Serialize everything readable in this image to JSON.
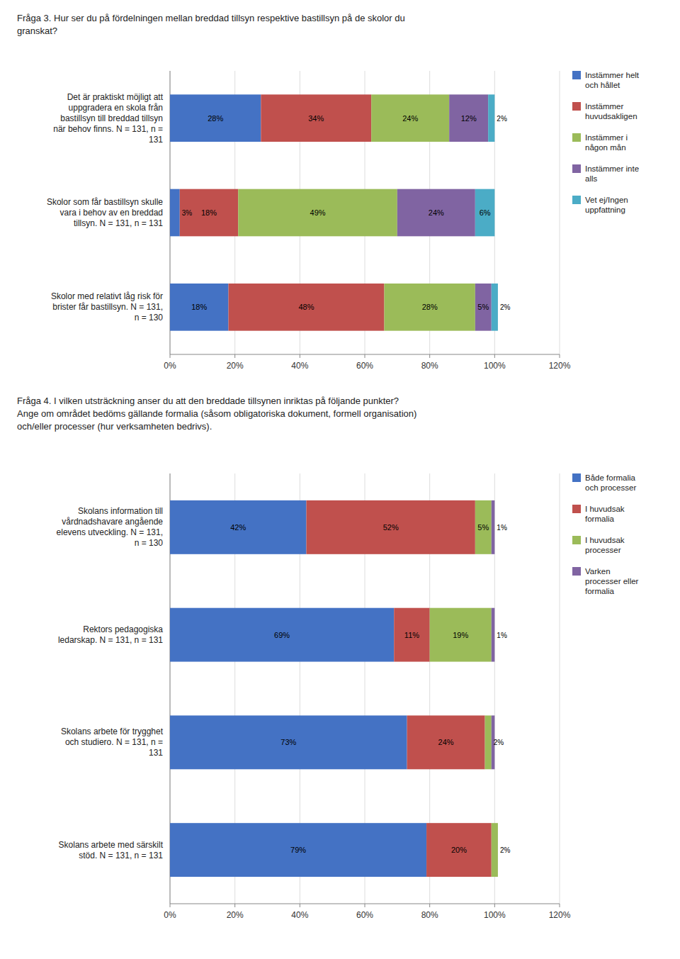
{
  "chart_data": [
    {
      "type": "bar",
      "orientation": "horizontal",
      "stacked": true,
      "data_labels": true,
      "grid": true,
      "legend": "right",
      "title": "Fråga 3. Hur ser du på fördelningen mellan breddad tillsyn respektive bastillsyn på de skolor du\ngranskat?",
      "categories": [
        "Det är praktiskt möjligt att\nuppgradera en skola från\nbastillsyn till breddad tillsyn\nnär behov finns. N = 131, n =\n131",
        "Skolor som får bastillsyn skulle\nvara i behov av en breddad\ntillsyn. N = 131, n = 131",
        "Skolor med relativt låg risk för\nbrister får bastillsyn. N = 131,\nn = 130"
      ],
      "series": [
        {
          "name": "Instämmer helt\noch hållet",
          "color": "#4472C4",
          "values": [
            28,
            3,
            18
          ],
          "value_labels": [
            "28%",
            "3%",
            "18%"
          ]
        },
        {
          "name": "Instämmer\nhuvudsakligen",
          "color": "#C0504D",
          "values": [
            34,
            18,
            48
          ],
          "value_labels": [
            "34%",
            "18%",
            "48%"
          ]
        },
        {
          "name": "Instämmer i\nnågon mån",
          "color": "#9BBB59",
          "values": [
            24,
            49,
            28
          ],
          "value_labels": [
            "24%",
            "49%",
            "28%"
          ]
        },
        {
          "name": "Instämmer inte\nalls",
          "color": "#8064A2",
          "values": [
            12,
            24,
            5
          ],
          "value_labels": [
            "12%",
            "24%",
            "5%"
          ]
        },
        {
          "name": "Vet ej/Ingen\nuppfattning",
          "color": "#4BACC6",
          "values": [
            2,
            6,
            2
          ],
          "value_labels": [
            "2%",
            "6%",
            "2%"
          ]
        }
      ],
      "xlim": [
        0,
        120
      ],
      "xticks": [
        {
          "value": 0,
          "label": "0%"
        },
        {
          "value": 20,
          "label": "20%"
        },
        {
          "value": 40,
          "label": "40%"
        },
        {
          "value": 60,
          "label": "60%"
        },
        {
          "value": 80,
          "label": "80%"
        },
        {
          "value": 100,
          "label": "100%"
        },
        {
          "value": 120,
          "label": "120%"
        }
      ]
    },
    {
      "type": "bar",
      "orientation": "horizontal",
      "stacked": true,
      "data_labels": true,
      "grid": true,
      "legend": "right",
      "title": "Fråga 4. I vilken utsträckning anser du att den breddade tillsynen inriktas på följande punkter?\nAnge om området bedöms gällande formalia (såsom obligatoriska dokument, formell organisation)\noch/eller processer (hur verksamheten bedrivs).",
      "categories": [
        "Skolans information till\nvårdnadshavare angående\nelevens utveckling. N = 131,\nn = 130",
        "Rektors pedagogiska\nledarskap. N = 131, n = 131",
        "Skolans arbete för trygghet\noch studiero. N = 131, n =\n131",
        "Skolans arbete med särskilt\nstöd. N = 131, n = 131"
      ],
      "series": [
        {
          "name": "Både formalia\noch processer",
          "color": "#4472C4",
          "values": [
            42,
            69,
            73,
            79
          ],
          "value_labels": [
            "42%",
            "69%",
            "73%",
            "79%"
          ]
        },
        {
          "name": "I huvudsak\nformalia",
          "color": "#C0504D",
          "values": [
            52,
            11,
            24,
            20
          ],
          "value_labels": [
            "52%",
            "11%",
            "24%",
            "20%"
          ]
        },
        {
          "name": "I huvudsak\nprocesser",
          "color": "#9BBB59",
          "values": [
            5,
            19,
            2,
            2
          ],
          "value_labels": [
            "5%",
            "19%",
            "2%",
            "2%"
          ]
        },
        {
          "name": "Varken\nprocesser eller\nformalia",
          "color": "#8064A2",
          "values": [
            1,
            1,
            1,
            0
          ],
          "value_labels": [
            "1%",
            "1%",
            null,
            null
          ]
        }
      ],
      "xlim": [
        0,
        120
      ],
      "xticks": [
        {
          "value": 0,
          "label": "0%"
        },
        {
          "value": 20,
          "label": "20%"
        },
        {
          "value": 40,
          "label": "40%"
        },
        {
          "value": 60,
          "label": "60%"
        },
        {
          "value": 80,
          "label": "80%"
        },
        {
          "value": 100,
          "label": "100%"
        },
        {
          "value": 120,
          "label": "120%"
        }
      ]
    }
  ]
}
